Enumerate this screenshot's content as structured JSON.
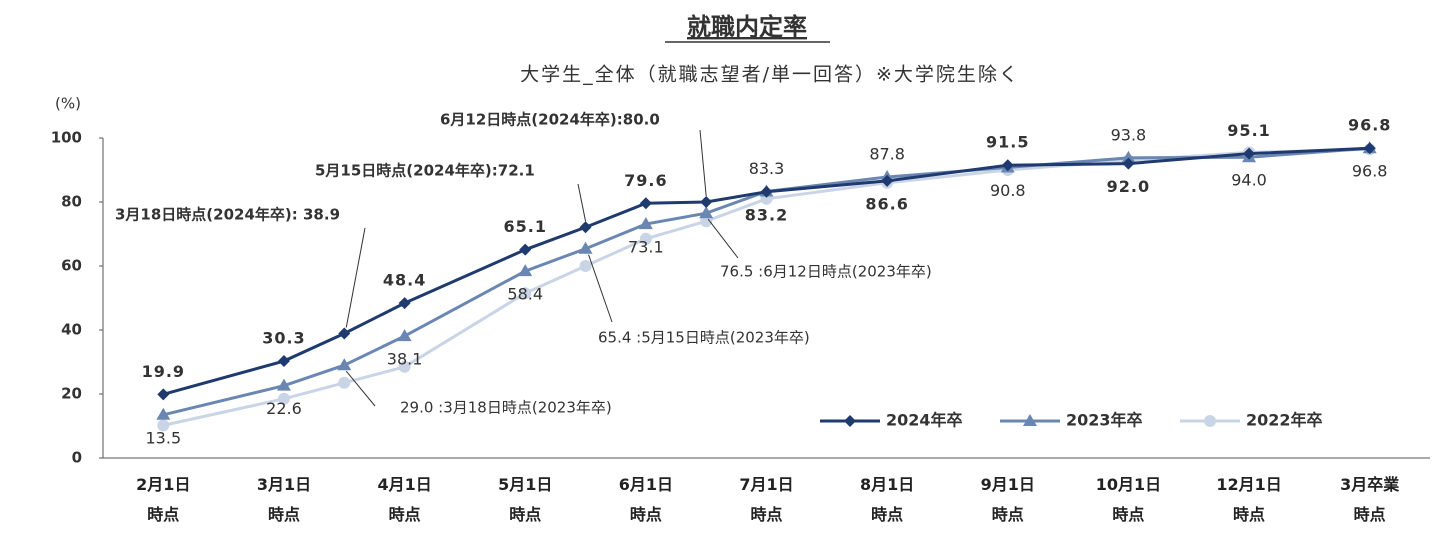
{
  "chart_data": {
    "type": "line",
    "title": "就職内定率",
    "subtitle": "大学生_全体（就職志望者/単一回答）※大学院生除く",
    "y_unit": "(%)",
    "categories": [
      "2月1日\n時点",
      "3月1日\n時点",
      null,
      "4月1日\n時点",
      "5月1日\n時点",
      null,
      "6月1日\n時点",
      null,
      "7月1日\n時点",
      "8月1日\n時点",
      "9月1日\n時点",
      "10月1日\n時点",
      "12月1日\n時点",
      "3月卒業\n時点"
    ],
    "series": [
      {
        "name": "2024年卒",
        "color": "#1f3a6e",
        "marker": "diamond",
        "values": [
          19.9,
          30.3,
          38.9,
          48.4,
          65.1,
          72.1,
          79.6,
          80.0,
          83.2,
          86.6,
          91.5,
          92.0,
          95.1,
          96.8
        ],
        "value_labels": [
          "19.9",
          "30.3",
          null,
          "48.4",
          "65.1",
          null,
          "79.6",
          null,
          "83.2",
          "86.6",
          "91.5",
          "92.0",
          "95.1",
          "96.8"
        ]
      },
      {
        "name": "2023年卒",
        "color": "#6a87b3",
        "marker": "triangle",
        "values": [
          13.5,
          22.6,
          29.0,
          38.1,
          58.4,
          65.4,
          73.1,
          76.5,
          83.3,
          87.8,
          90.8,
          93.8,
          94.0,
          96.8
        ],
        "value_labels": [
          "13.5",
          "22.6",
          null,
          "38.1",
          "58.4",
          null,
          "73.1",
          null,
          "83.3",
          "87.8",
          "90.8",
          "93.8",
          "94.0",
          "96.8"
        ]
      },
      {
        "name": "2022年卒",
        "color": "#c9d5e6",
        "marker": "circle",
        "values": [
          10.2,
          18.5,
          23.5,
          28.5,
          51.5,
          60.0,
          68.5,
          74.0,
          81.0,
          86.0,
          90.0,
          93.0,
          95.5,
          96.5
        ]
      }
    ],
    "annotations": [
      "6月12日時点(2024年卒):80.0",
      "5月15日時点(2024年卒):72.1",
      "3月18日時点(2024年卒): 38.9",
      "76.5 :6月12日時点(2023年卒)",
      "65.4 :5月15日時点(2023年卒)",
      "29.0 :3月18日時点(2023年卒)"
    ],
    "ylim": [
      0,
      100
    ],
    "yticks": [
      0,
      20,
      40,
      60,
      80,
      100
    ],
    "grid": false,
    "legend": "lower right"
  }
}
